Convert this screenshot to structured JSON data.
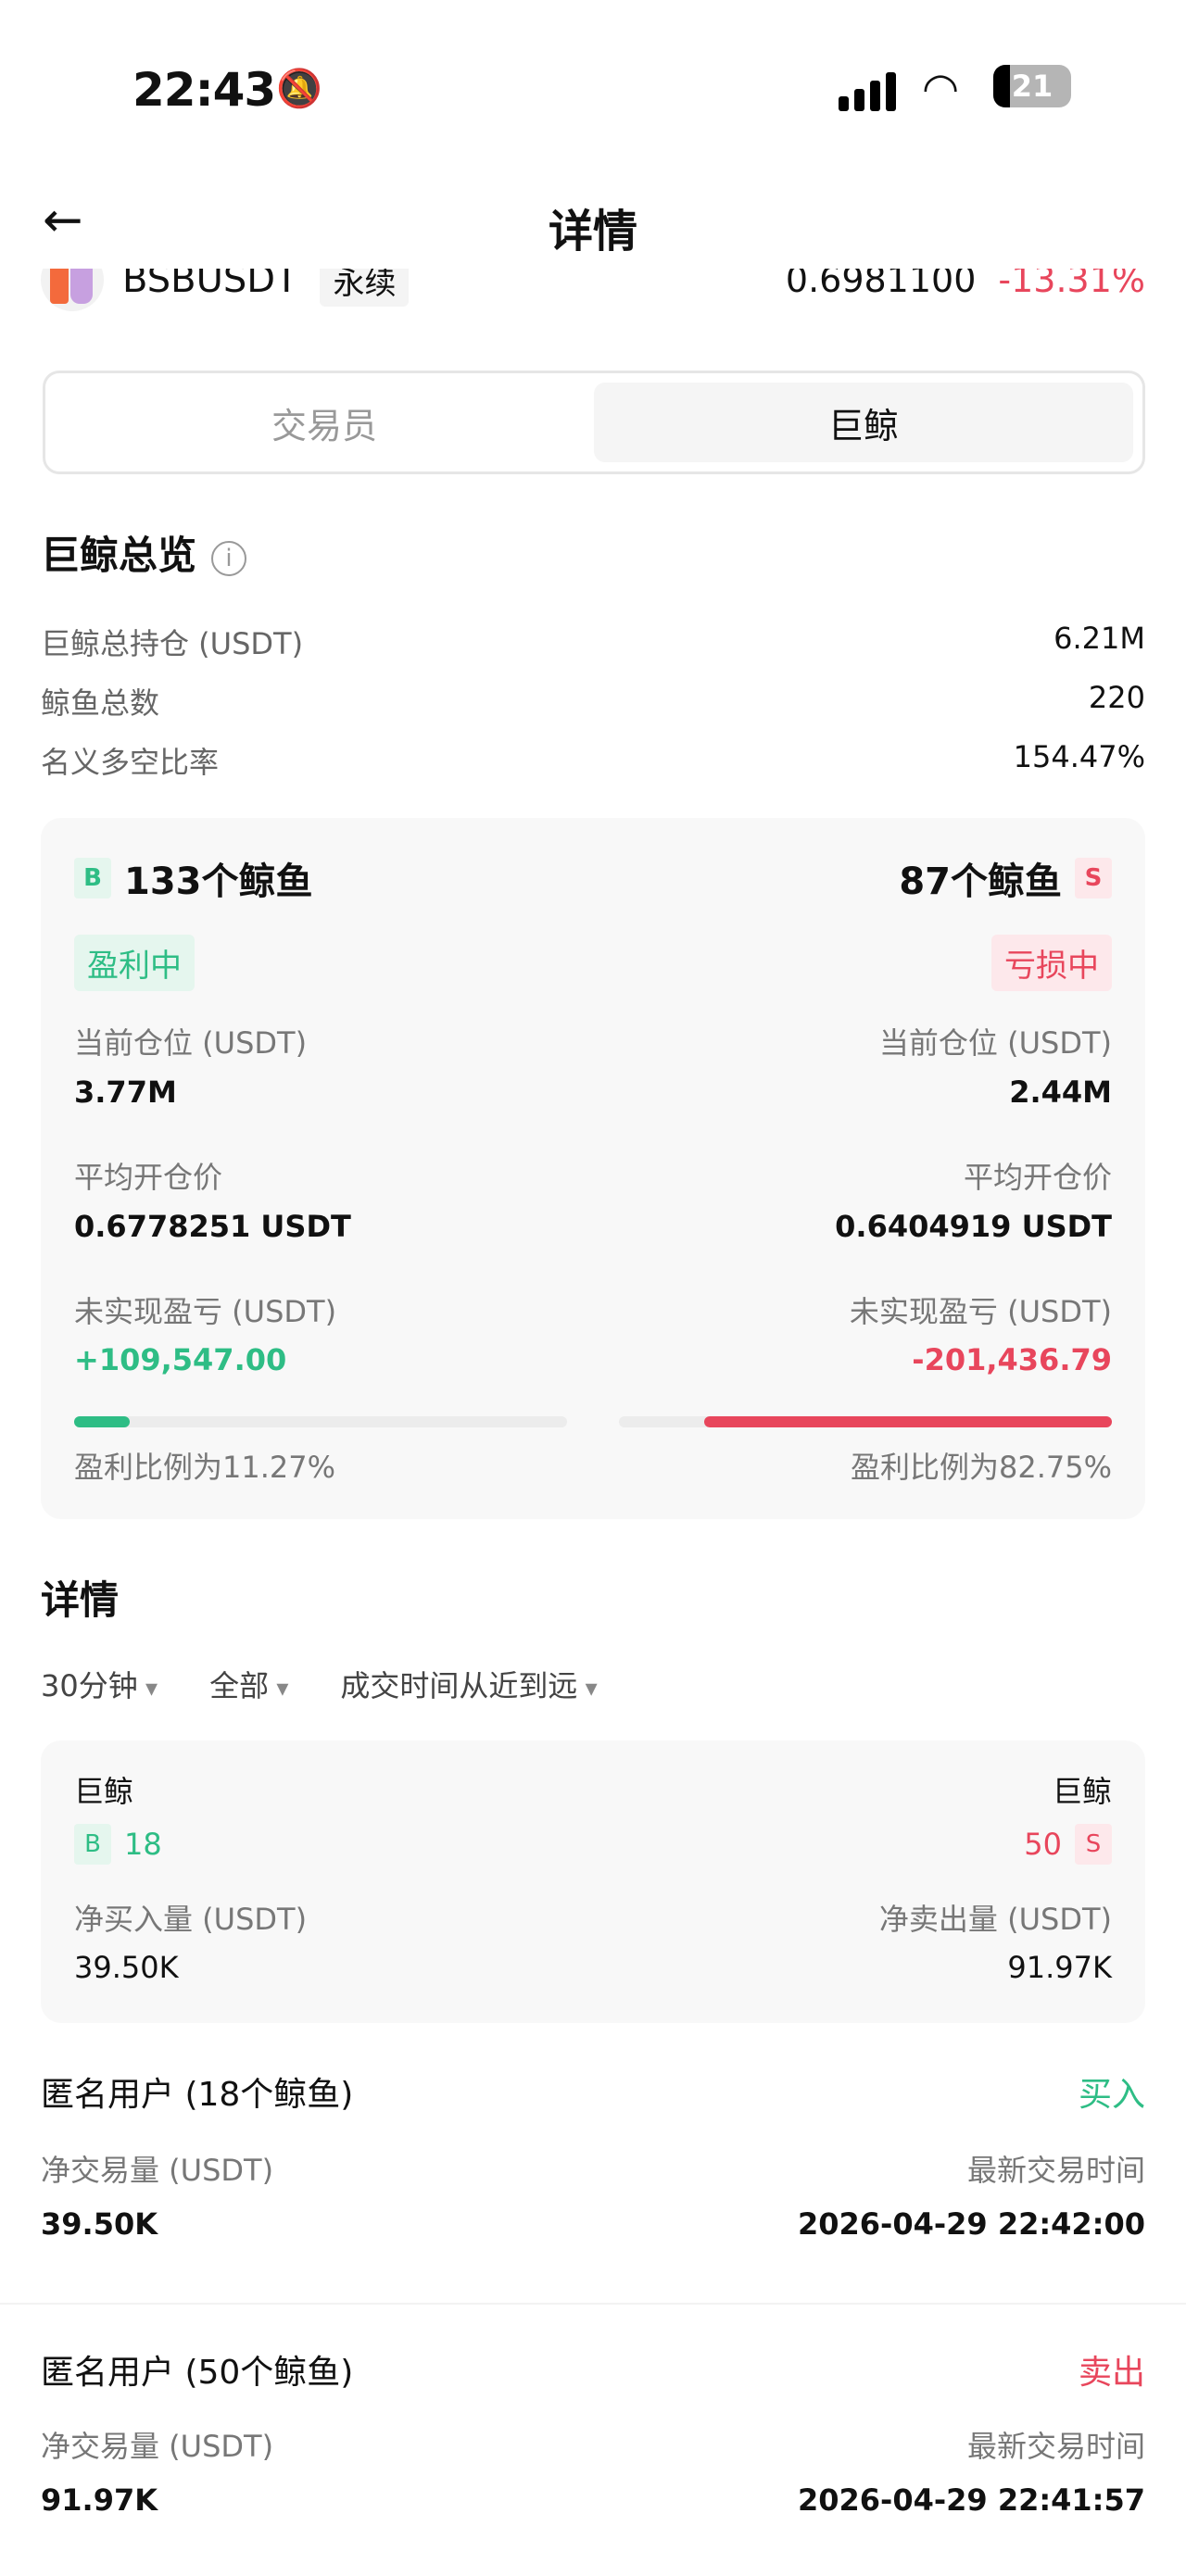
{
  "status_bar": {
    "time": "22:43",
    "battery": "21"
  },
  "header": {
    "title": "详情"
  },
  "coin": {
    "symbol": "BSBUSDT",
    "type": "永续",
    "price": "0.6981100",
    "change": "-13.31%"
  },
  "tabs": [
    {
      "label": "交易员",
      "active": false
    },
    {
      "label": "巨鲸",
      "active": true
    }
  ],
  "overview": {
    "title": "巨鲸总览",
    "rows": [
      {
        "label": "巨鲸总持仓 (USDT)",
        "value": "6.21M"
      },
      {
        "label": "鲸鱼总数",
        "value": "220"
      },
      {
        "label": "名义多空比率",
        "value": "154.47%"
      }
    ]
  },
  "long": {
    "tag": "B",
    "count": "133个鲸鱼",
    "status": "盈利中",
    "pos_label": "当前仓位 (USDT)",
    "pos": "3.77M",
    "avg_label": "平均开仓价",
    "avg": "0.6778251 USDT",
    "pnl_label": "未实现盈亏 (USDT)",
    "pnl": "+109,547.00",
    "ratio_text": "盈利比例为11.27%",
    "ratio": 11.27
  },
  "short": {
    "tag": "S",
    "count": "87个鲸鱼",
    "status": "亏损中",
    "pos_label": "当前仓位 (USDT)",
    "pos": "2.44M",
    "avg_label": "平均开仓价",
    "avg": "0.6404919 USDT",
    "pnl_label": "未实现盈亏 (USDT)",
    "pnl": "-201,436.79",
    "ratio_text": "盈利比例为82.75%",
    "ratio": 82.75
  },
  "details": {
    "title": "详情",
    "filters": [
      "30分钟",
      "全部",
      "成交时间从近到远"
    ],
    "summary": {
      "buy_label": "巨鲸",
      "buy_tag": "B",
      "buy_count": "18",
      "sell_label": "巨鲸",
      "sell_tag": "S",
      "sell_count": "50",
      "net_buy_label": "净买入量 (USDT)",
      "net_buy": "39.50K",
      "net_sell_label": "净卖出量 (USDT)",
      "net_sell": "91.97K"
    },
    "items": [
      {
        "name": "匿名用户 (18个鲸鱼)",
        "side": "买入",
        "vol_label": "净交易量 (USDT)",
        "vol": "39.50K",
        "time_label": "最新交易时间",
        "time": "2026-04-29 22:42:00"
      },
      {
        "name": "匿名用户 (50个鲸鱼)",
        "side": "卖出",
        "vol_label": "净交易量 (USDT)",
        "vol": "91.97K",
        "time_label": "最新交易时间",
        "time": "2026-04-29 22:41:57"
      }
    ]
  },
  "colors": {
    "green": "#2ebd85",
    "red": "#e8465c"
  }
}
